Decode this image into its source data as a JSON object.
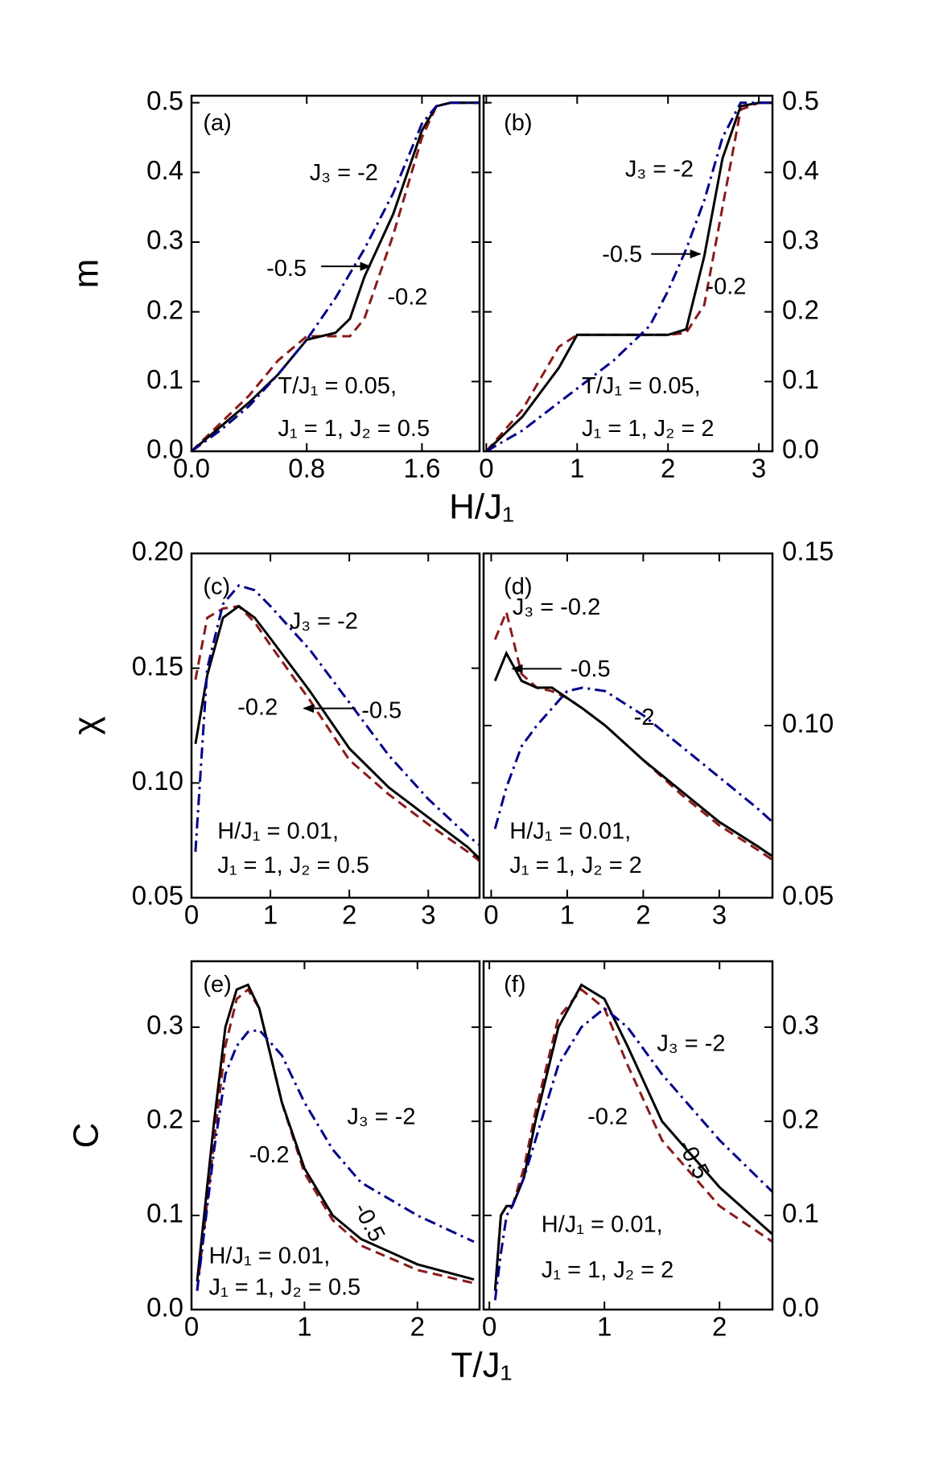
{
  "chart_data": [
    {
      "type": "line",
      "panel_label": "(a)",
      "ylabel": "m",
      "xlabel": "H/J₁",
      "annotations": [
        "T/J₁ = 0.05,",
        "J₁ = 1, J₂ = 0.5"
      ],
      "xlim": [
        0,
        2
      ],
      "ylim": [
        0,
        0.51
      ],
      "xticks": [
        {
          "value": 0,
          "label": "0.0"
        },
        0.8,
        1.6
      ],
      "yticks": [
        {
          "value": 0,
          "label": "0.0"
        },
        0.1,
        0.2,
        0.3,
        0.4,
        0.5
      ],
      "x": [
        0,
        0.2,
        0.4,
        0.6,
        0.8,
        0.9,
        1.0,
        1.1,
        1.2,
        1.4,
        1.6,
        1.7,
        1.8,
        2.0
      ],
      "series": [
        {
          "name": "-0.2",
          "color": "#8b1a1a",
          "style": "dashed",
          "values": [
            0,
            0.04,
            0.08,
            0.13,
            0.165,
            0.165,
            0.165,
            0.165,
            0.19,
            0.31,
            0.45,
            0.495,
            0.5,
            0.5
          ]
        },
        {
          "name": "-0.5",
          "color": "#000000",
          "style": "solid",
          "values": [
            0,
            0.035,
            0.07,
            0.11,
            0.16,
            0.165,
            0.17,
            0.19,
            0.25,
            0.34,
            0.46,
            0.495,
            0.5,
            0.5
          ]
        },
        {
          "name": "J₃ = -2",
          "color": "#00008b",
          "style": "dashdot",
          "values": [
            0,
            0.03,
            0.065,
            0.11,
            0.16,
            0.19,
            0.22,
            0.255,
            0.29,
            0.37,
            0.47,
            0.495,
            0.5,
            0.5
          ]
        }
      ]
    },
    {
      "type": "line",
      "panel_label": "(b)",
      "annotations": [
        "T/J₁ = 0.05,",
        "J₁ = 1, J₂ = 2"
      ],
      "xlim": [
        -0.03,
        3.15
      ],
      "ylim": [
        0,
        0.51
      ],
      "xticks": [
        0,
        1,
        2,
        3
      ],
      "yticks": [
        {
          "value": 0,
          "label": "0.0"
        },
        0.1,
        0.2,
        0.3,
        0.4,
        0.5
      ],
      "x": [
        0,
        0.4,
        0.8,
        1.0,
        1.4,
        1.8,
        2.0,
        2.2,
        2.4,
        2.6,
        2.8,
        3.0,
        3.15
      ],
      "series": [
        {
          "name": "-0.2",
          "color": "#8b1a1a",
          "style": "dashed",
          "values": [
            0,
            0.06,
            0.15,
            0.167,
            0.167,
            0.167,
            0.167,
            0.17,
            0.21,
            0.35,
            0.49,
            0.5,
            0.5
          ]
        },
        {
          "name": "-0.5",
          "color": "#000000",
          "style": "solid",
          "values": [
            0,
            0.05,
            0.12,
            0.167,
            0.167,
            0.167,
            0.167,
            0.175,
            0.28,
            0.42,
            0.495,
            0.5,
            0.5
          ]
        },
        {
          "name": "J₃ = -2",
          "color": "#00008b",
          "style": "dashdot",
          "values": [
            0,
            0.03,
            0.07,
            0.09,
            0.13,
            0.18,
            0.23,
            0.29,
            0.36,
            0.45,
            0.5,
            0.5,
            0.5
          ]
        }
      ]
    },
    {
      "type": "line",
      "panel_label": "(c)",
      "ylabel": "χ",
      "annotations": [
        "H/J₁ = 0.01,",
        "J₁ = 1, J₂ = 0.5"
      ],
      "xlim": [
        0,
        3.65
      ],
      "ylim": [
        0.05,
        0.2
      ],
      "xticks": [
        0,
        1,
        2,
        3
      ],
      "yticks": [
        0.05,
        {
          "value": 0.1,
          "label": "0.10"
        },
        0.15,
        {
          "value": 0.2,
          "label": "0.20"
        }
      ],
      "x": [
        0.05,
        0.2,
        0.4,
        0.6,
        0.8,
        1.0,
        1.5,
        2.0,
        2.5,
        3.0,
        3.5,
        3.65
      ],
      "series": [
        {
          "name": "-0.2",
          "color": "#8b1a1a",
          "style": "dashed",
          "values": [
            0.145,
            0.172,
            0.176,
            0.177,
            0.17,
            0.16,
            0.136,
            0.11,
            0.095,
            0.082,
            0.07,
            0.066
          ]
        },
        {
          "name": "-0.5",
          "color": "#000000",
          "style": "solid",
          "values": [
            0.117,
            0.147,
            0.172,
            0.177,
            0.172,
            0.163,
            0.14,
            0.115,
            0.098,
            0.085,
            0.072,
            0.067
          ]
        },
        {
          "name": "J₃ = -2",
          "color": "#00008b",
          "style": "dashdot",
          "values": [
            0.07,
            0.15,
            0.178,
            0.186,
            0.184,
            0.177,
            0.158,
            0.135,
            0.112,
            0.093,
            0.077,
            0.073
          ]
        }
      ]
    },
    {
      "type": "line",
      "panel_label": "(d)",
      "annotations": [
        "H/J₁ = 0.01,",
        "J₁ = 1, J₂ = 2"
      ],
      "xlim": [
        -0.1,
        3.7
      ],
      "ylim": [
        0.05,
        0.15
      ],
      "xticks": [
        0,
        1,
        2,
        3
      ],
      "yticks": [
        0.05,
        {
          "value": 0.1,
          "label": "0.10"
        },
        0.15
      ],
      "x": [
        0.05,
        0.2,
        0.4,
        0.6,
        0.8,
        1.0,
        1.2,
        1.5,
        2.0,
        2.5,
        3.0,
        3.5,
        3.7
      ],
      "series": [
        {
          "name": "J₃ = -0.2",
          "color": "#8b1a1a",
          "style": "dashed",
          "values": [
            0.125,
            0.133,
            0.115,
            0.111,
            0.11,
            0.108,
            0.105,
            0.1,
            0.09,
            0.08,
            0.071,
            0.064,
            0.061
          ]
        },
        {
          "name": "-0.5",
          "color": "#000000",
          "style": "solid",
          "values": [
            0.113,
            0.121,
            0.113,
            0.111,
            0.111,
            0.108,
            0.105,
            0.1,
            0.09,
            0.081,
            0.072,
            0.065,
            0.062
          ]
        },
        {
          "name": "-2",
          "color": "#00008b",
          "style": "dashdot",
          "values": [
            0.07,
            0.082,
            0.094,
            0.1,
            0.105,
            0.11,
            0.111,
            0.11,
            0.103,
            0.094,
            0.085,
            0.076,
            0.072
          ]
        }
      ]
    },
    {
      "type": "line",
      "panel_label": "(e)",
      "ylabel": "C",
      "xlabel": "T/J₁",
      "annotations": [
        "H/J₁ = 0.01,",
        "J₁ = 1, J₂ = 0.5"
      ],
      "xlim": [
        0,
        2.55
      ],
      "ylim": [
        0,
        0.37
      ],
      "xticks": [
        0,
        1,
        2
      ],
      "yticks": [
        {
          "value": 0,
          "label": "0.0"
        },
        0.1,
        0.2,
        0.3
      ],
      "x": [
        0.05,
        0.2,
        0.3,
        0.4,
        0.5,
        0.6,
        0.8,
        1.0,
        1.25,
        1.5,
        2.0,
        2.5
      ],
      "series": [
        {
          "name": "-0.2",
          "color": "#8b1a1a",
          "style": "dashed",
          "values": [
            0.02,
            0.18,
            0.28,
            0.33,
            0.34,
            0.32,
            0.22,
            0.145,
            0.095,
            0.068,
            0.042,
            0.028
          ]
        },
        {
          "name": "-0.5",
          "color": "#000000",
          "style": "solid",
          "values": [
            0.03,
            0.2,
            0.3,
            0.34,
            0.345,
            0.32,
            0.22,
            0.15,
            0.1,
            0.075,
            0.048,
            0.032
          ]
        },
        {
          "name": "J₃ = -2",
          "color": "#00008b",
          "style": "dashdot",
          "values": [
            0.02,
            0.17,
            0.25,
            0.28,
            0.295,
            0.297,
            0.27,
            0.22,
            0.17,
            0.135,
            0.1,
            0.072
          ]
        }
      ]
    },
    {
      "type": "line",
      "panel_label": "(f)",
      "annotations": [
        "H/J₁ = 0.01,",
        "J₁ = 1, J₂ = 2"
      ],
      "xlim": [
        -0.05,
        2.46
      ],
      "ylim": [
        0,
        0.37
      ],
      "xticks": [
        0,
        1,
        2
      ],
      "yticks": [
        {
          "value": 0,
          "label": "0.0"
        },
        0.1,
        0.2,
        0.3
      ],
      "x": [
        0.05,
        0.1,
        0.15,
        0.2,
        0.3,
        0.4,
        0.6,
        0.8,
        1.0,
        1.2,
        1.5,
        2.0,
        2.46
      ],
      "series": [
        {
          "name": "-0.2",
          "color": "#8b1a1a",
          "style": "dashed",
          "values": [
            0.02,
            0.1,
            0.11,
            0.11,
            0.15,
            0.21,
            0.31,
            0.34,
            0.32,
            0.26,
            0.18,
            0.11,
            0.072
          ]
        },
        {
          "name": "-0.5",
          "color": "#000000",
          "style": "solid",
          "values": [
            0.02,
            0.1,
            0.11,
            0.11,
            0.14,
            0.2,
            0.3,
            0.345,
            0.33,
            0.28,
            0.2,
            0.13,
            0.08
          ]
        },
        {
          "name": "J₃ = -2",
          "color": "#00008b",
          "style": "dashdot",
          "values": [
            0.01,
            0.06,
            0.1,
            0.11,
            0.14,
            0.18,
            0.26,
            0.3,
            0.32,
            0.3,
            0.25,
            0.18,
            0.125
          ]
        }
      ]
    }
  ]
}
